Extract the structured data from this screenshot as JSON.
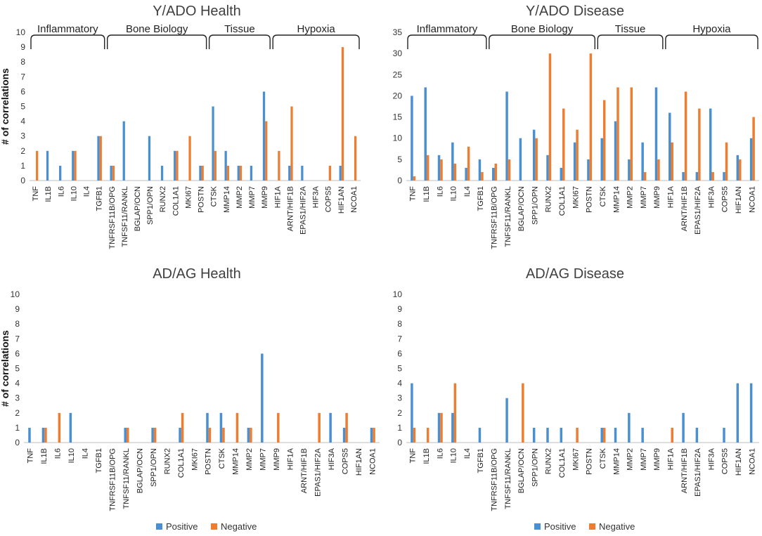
{
  "categories": [
    "TNF",
    "IL1B",
    "IL6",
    "IL10",
    "IL4",
    "TGFB1",
    "TNFRSF11B/OPG",
    "TNFSF11/RANKL",
    "BGLAP/OCN",
    "SPP1/OPN",
    "RUNX2",
    "COL1A1",
    "MKI67",
    "POSTN",
    "CTSK",
    "MMP14",
    "MMP2",
    "MMP7",
    "MMP9",
    "HIF1A",
    "ARNT/HIF1B",
    "EPAS1/HIF2A",
    "HIF3A",
    "COPS5",
    "HIF1AN",
    "NCOA1"
  ],
  "colors": {
    "positive": "#4a90d0",
    "negative": "#ed7d31"
  },
  "chart_data": [
    {
      "type": "bar",
      "title": "Y/ADO Health",
      "ylabel": "# of correlations",
      "ylim": [
        0,
        10
      ],
      "yticks": [
        0,
        1,
        2,
        3,
        4,
        5,
        6,
        7,
        8,
        9,
        10
      ],
      "groups": [
        {
          "label": "Inflammatory",
          "from": "TNF",
          "to": "TGFB1"
        },
        {
          "label": "Bone Biology",
          "from": "TNFRSF11B/OPG",
          "to": "POSTN"
        },
        {
          "label": "Tissue",
          "from": "CTSK",
          "to": "MMP9"
        },
        {
          "label": "Hypoxia",
          "from": "HIF1A",
          "to": "NCOA1"
        }
      ],
      "series": [
        {
          "name": "Positive",
          "values": [
            0,
            2,
            1,
            2,
            0,
            3,
            1,
            4,
            0,
            3,
            1,
            2,
            0,
            1,
            5,
            2,
            1,
            1,
            6,
            0,
            1,
            1,
            0,
            0,
            1,
            0
          ]
        },
        {
          "name": "Negative",
          "values": [
            2,
            0,
            0,
            2,
            0,
            3,
            1,
            0,
            0,
            0,
            0,
            2,
            3,
            1,
            2,
            1,
            1,
            0,
            4,
            2,
            5,
            0,
            0,
            1,
            9,
            3
          ]
        }
      ]
    },
    {
      "type": "bar",
      "title": "Y/ADO Disease",
      "ylabel": "",
      "ylim": [
        0,
        35
      ],
      "yticks": [
        0,
        5,
        10,
        15,
        20,
        25,
        30,
        35
      ],
      "groups": [
        {
          "label": "Inflammatory",
          "from": "TNF",
          "to": "TGFB1"
        },
        {
          "label": "Bone Biology",
          "from": "TNFRSF11B/OPG",
          "to": "POSTN"
        },
        {
          "label": "Tissue",
          "from": "CTSK",
          "to": "MMP9"
        },
        {
          "label": "Hypoxia",
          "from": "HIF1A",
          "to": "NCOA1"
        }
      ],
      "series": [
        {
          "name": "Positive",
          "values": [
            20,
            22,
            6,
            9,
            3,
            5,
            3,
            21,
            10,
            12,
            6,
            3,
            9,
            5,
            10,
            14,
            5,
            9,
            22,
            16,
            2,
            2,
            17,
            2,
            6,
            10
          ]
        },
        {
          "name": "Negative",
          "values": [
            1,
            6,
            5,
            4,
            8,
            2,
            4,
            5,
            0,
            10,
            30,
            17,
            12,
            30,
            19,
            22,
            22,
            2,
            5,
            9,
            21,
            17,
            2,
            9,
            5,
            15
          ]
        }
      ]
    },
    {
      "type": "bar",
      "title": "AD/AG Health",
      "ylabel": "# of correlations",
      "ylim": [
        0,
        10
      ],
      "yticks": [
        0,
        1,
        2,
        3,
        4,
        5,
        6,
        7,
        8,
        9,
        10
      ],
      "groups": [],
      "series": [
        {
          "name": "Positive",
          "values": [
            1,
            1,
            0,
            2,
            0,
            0,
            0,
            1,
            0,
            1,
            0,
            1,
            0,
            2,
            2,
            0,
            1,
            6,
            0,
            0,
            0,
            0,
            2,
            1,
            0,
            1
          ]
        },
        {
          "name": "Negative",
          "values": [
            0,
            1,
            2,
            0,
            0,
            0,
            0,
            1,
            0,
            1,
            0,
            2,
            0,
            1,
            1,
            2,
            1,
            0,
            2,
            0,
            0,
            2,
            0,
            2,
            0,
            1
          ]
        }
      ]
    },
    {
      "type": "bar",
      "title": "AD/AG Disease",
      "ylabel": "",
      "ylim": [
        0,
        10
      ],
      "yticks": [
        0,
        1,
        2,
        3,
        4,
        5,
        6,
        7,
        8,
        9,
        10
      ],
      "groups": [],
      "series": [
        {
          "name": "Positive",
          "values": [
            4,
            0,
            2,
            2,
            0,
            1,
            0,
            3,
            0,
            1,
            1,
            1,
            0,
            0,
            1,
            1,
            2,
            1,
            0,
            0,
            2,
            1,
            0,
            1,
            4,
            4
          ]
        },
        {
          "name": "Negative",
          "values": [
            1,
            1,
            2,
            4,
            0,
            0,
            0,
            0,
            4,
            0,
            0,
            0,
            1,
            0,
            1,
            0,
            0,
            0,
            0,
            1,
            0,
            0,
            0,
            0,
            0,
            0
          ]
        }
      ]
    }
  ],
  "legend": {
    "positive": "Positive",
    "negative": "Negative"
  }
}
